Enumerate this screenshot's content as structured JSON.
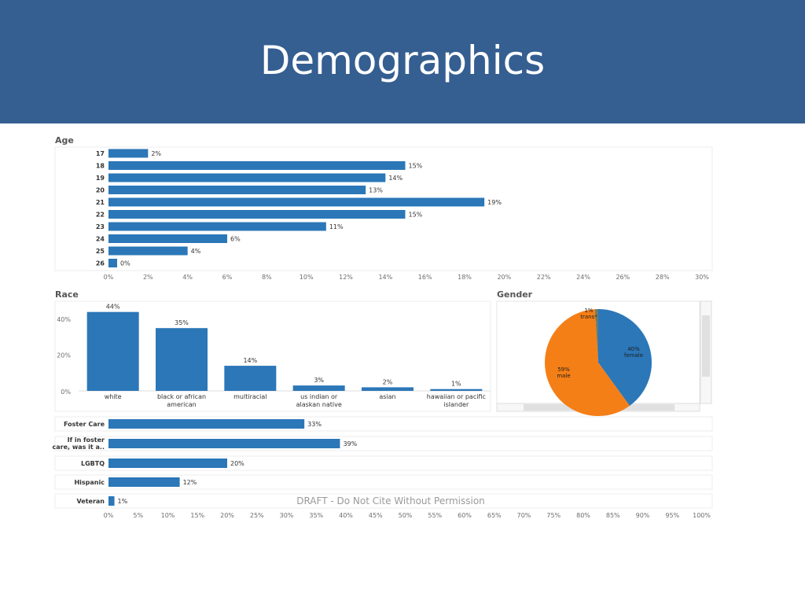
{
  "header": {
    "title": "Demographics"
  },
  "colors": {
    "header_bg": "#355e91",
    "bar": "#2b77b8",
    "orange": "#f57f17",
    "trans": "#6b7d6b",
    "grid": "#e8e8e8",
    "axis_text": "#6d6d6d",
    "label_text": "#333333"
  },
  "watermark": "DRAFT - Do Not Cite Without Permission",
  "chart_data": [
    {
      "type": "bar",
      "orientation": "horizontal",
      "title": "Age",
      "categories": [
        "17",
        "18",
        "19",
        "20",
        "21",
        "22",
        "23",
        "24",
        "25",
        "26"
      ],
      "values": [
        2,
        15,
        14,
        13,
        19,
        15,
        11,
        6,
        4,
        0
      ],
      "value_labels": [
        "2%",
        "15%",
        "14%",
        "13%",
        "19%",
        "15%",
        "11%",
        "6%",
        "4%",
        "0%"
      ],
      "xlim": [
        0,
        30
      ],
      "xticks": [
        "0%",
        "2%",
        "4%",
        "6%",
        "8%",
        "10%",
        "12%",
        "14%",
        "16%",
        "18%",
        "20%",
        "22%",
        "24%",
        "26%",
        "28%",
        "30%"
      ],
      "grid": false
    },
    {
      "type": "bar",
      "orientation": "vertical",
      "title": "Race",
      "categories": [
        "white",
        "black or african american",
        "multiracial",
        "us indian or alaskan native",
        "asian",
        "hawaiian or pacific islander"
      ],
      "category_lines": [
        [
          "white"
        ],
        [
          "black or african",
          "american"
        ],
        [
          "multiracial"
        ],
        [
          "us indian or",
          "alaskan native"
        ],
        [
          "asian"
        ],
        [
          "hawaiian or pacific",
          "islander"
        ]
      ],
      "values": [
        44,
        35,
        14,
        3,
        2,
        1
      ],
      "value_labels": [
        "44%",
        "35%",
        "14%",
        "3%",
        "2%",
        "1%"
      ],
      "ylim": [
        0,
        50
      ],
      "yticks": [
        {
          "value": 0,
          "label": "0%"
        },
        {
          "value": 20,
          "label": "20%"
        },
        {
          "value": 40,
          "label": "40%"
        }
      ]
    },
    {
      "type": "pie",
      "title": "Gender",
      "slices": [
        {
          "label": "female",
          "value": 40,
          "value_label": "40%"
        },
        {
          "label": "male",
          "value": 59,
          "value_label": "59%"
        },
        {
          "label": "trans*",
          "value": 1,
          "value_label": "1%"
        }
      ]
    },
    {
      "type": "bar",
      "orientation": "horizontal",
      "title": "",
      "categories": [
        "Foster Care",
        "If in foster care, was it a..",
        "LGBTQ",
        "Hispanic",
        "Veteran"
      ],
      "category_lines": [
        [
          "Foster Care"
        ],
        [
          "If in foster",
          "care, was it a.."
        ],
        [
          "LGBTQ"
        ],
        [
          "Hispanic"
        ],
        [
          "Veteran"
        ]
      ],
      "values": [
        33,
        39,
        20,
        12,
        1
      ],
      "value_labels": [
        "33%",
        "39%",
        "20%",
        "12%",
        "1%"
      ],
      "xlim": [
        0,
        100
      ],
      "xticks": [
        "0%",
        "5%",
        "10%",
        "15%",
        "20%",
        "25%",
        "30%",
        "35%",
        "40%",
        "45%",
        "50%",
        "55%",
        "60%",
        "65%",
        "70%",
        "75%",
        "80%",
        "85%",
        "90%",
        "95%",
        "100%"
      ]
    }
  ]
}
